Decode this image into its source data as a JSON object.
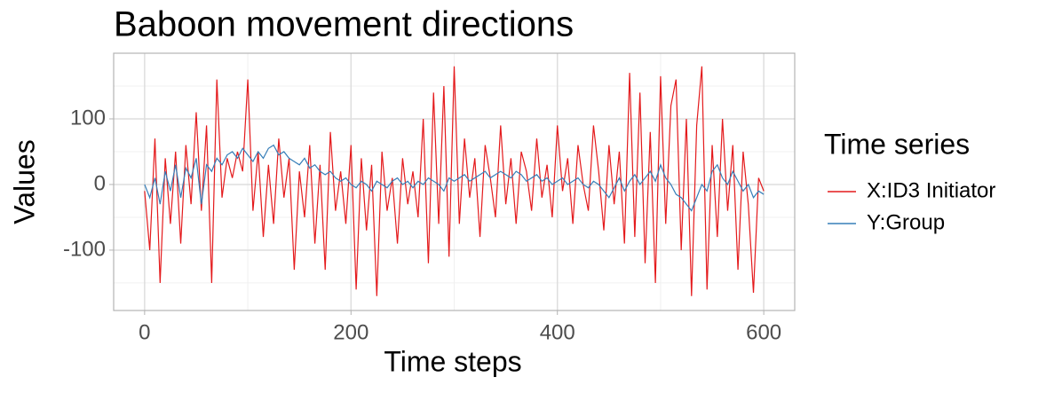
{
  "chart_data": {
    "type": "line",
    "title": "Baboon movement directions",
    "x_label": "Time steps",
    "y_label": "Values",
    "legend_title": "Time series",
    "legend_position": "right",
    "grid": true,
    "xlim": [
      -30,
      630
    ],
    "xticks": [
      0,
      200,
      400,
      600
    ],
    "x_minor_ticks": [
      100,
      300,
      500
    ],
    "ylim": [
      -192,
      200
    ],
    "yticks": [
      -100,
      0,
      100
    ],
    "y_minor_ticks": [
      -150,
      -50,
      50,
      150
    ],
    "x": [
      0,
      5,
      10,
      15,
      20,
      25,
      30,
      35,
      40,
      45,
      50,
      55,
      60,
      65,
      70,
      75,
      80,
      85,
      90,
      95,
      100,
      105,
      110,
      115,
      120,
      125,
      130,
      135,
      140,
      145,
      150,
      155,
      160,
      165,
      170,
      175,
      180,
      185,
      190,
      195,
      200,
      205,
      210,
      215,
      220,
      225,
      230,
      235,
      240,
      245,
      250,
      255,
      260,
      265,
      270,
      275,
      280,
      285,
      290,
      295,
      300,
      305,
      310,
      315,
      320,
      325,
      330,
      335,
      340,
      345,
      350,
      355,
      360,
      365,
      370,
      375,
      380,
      385,
      390,
      395,
      400,
      405,
      410,
      415,
      420,
      425,
      430,
      435,
      440,
      445,
      450,
      455,
      460,
      465,
      470,
      475,
      480,
      485,
      490,
      495,
      500,
      505,
      510,
      515,
      520,
      525,
      530,
      535,
      540,
      545,
      550,
      555,
      560,
      565,
      570,
      575,
      580,
      585,
      590,
      595,
      600
    ],
    "series": [
      {
        "name": "X:ID3 Initiator",
        "color": "#e41a1c",
        "values": [
          -10,
          -100,
          70,
          -150,
          40,
          -60,
          50,
          -90,
          60,
          -30,
          110,
          -40,
          90,
          -150,
          160,
          -20,
          40,
          10,
          50,
          20,
          160,
          -40,
          50,
          -80,
          30,
          -60,
          70,
          -20,
          40,
          -130,
          20,
          -50,
          60,
          -90,
          30,
          -130,
          80,
          -40,
          20,
          -60,
          60,
          -160,
          40,
          -70,
          30,
          -170,
          50,
          -40,
          10,
          -90,
          40,
          -30,
          20,
          -50,
          100,
          -120,
          140,
          -60,
          150,
          -110,
          180,
          -60,
          70,
          -20,
          40,
          -80,
          60,
          10,
          -50,
          90,
          -30,
          40,
          -60,
          50,
          20,
          -40,
          70,
          -20,
          30,
          -50,
          90,
          -10,
          40,
          -60,
          60,
          0,
          -40,
          90,
          20,
          -70,
          60,
          -30,
          50,
          -90,
          170,
          -80,
          140,
          -120,
          80,
          -150,
          165,
          -60,
          120,
          160,
          -100,
          100,
          -170,
          90,
          180,
          -160,
          60,
          -80,
          100,
          -40,
          60,
          -130,
          50,
          -30,
          -165,
          10,
          -10
        ]
      },
      {
        "name": "Y:Group",
        "color": "#377eb8",
        "values": [
          0,
          -20,
          10,
          -30,
          20,
          -10,
          30,
          -20,
          25,
          10,
          40,
          -30,
          30,
          20,
          40,
          30,
          45,
          50,
          40,
          55,
          45,
          35,
          50,
          40,
          55,
          60,
          45,
          50,
          40,
          35,
          30,
          40,
          25,
          30,
          20,
          15,
          20,
          10,
          5,
          10,
          0,
          -5,
          5,
          0,
          -10,
          5,
          0,
          -5,
          5,
          10,
          0,
          5,
          -5,
          5,
          0,
          10,
          5,
          0,
          -10,
          10,
          5,
          10,
          15,
          5,
          10,
          15,
          20,
          10,
          15,
          20,
          15,
          10,
          20,
          15,
          5,
          10,
          15,
          5,
          10,
          0,
          5,
          10,
          0,
          5,
          10,
          0,
          -5,
          5,
          0,
          -10,
          -20,
          -5,
          10,
          -10,
          5,
          15,
          0,
          10,
          20,
          5,
          30,
          10,
          0,
          -15,
          -20,
          -30,
          -40,
          -20,
          0,
          -10,
          20,
          30,
          10,
          0,
          20,
          5,
          -10,
          0,
          -20,
          -10,
          -15
        ]
      }
    ]
  }
}
